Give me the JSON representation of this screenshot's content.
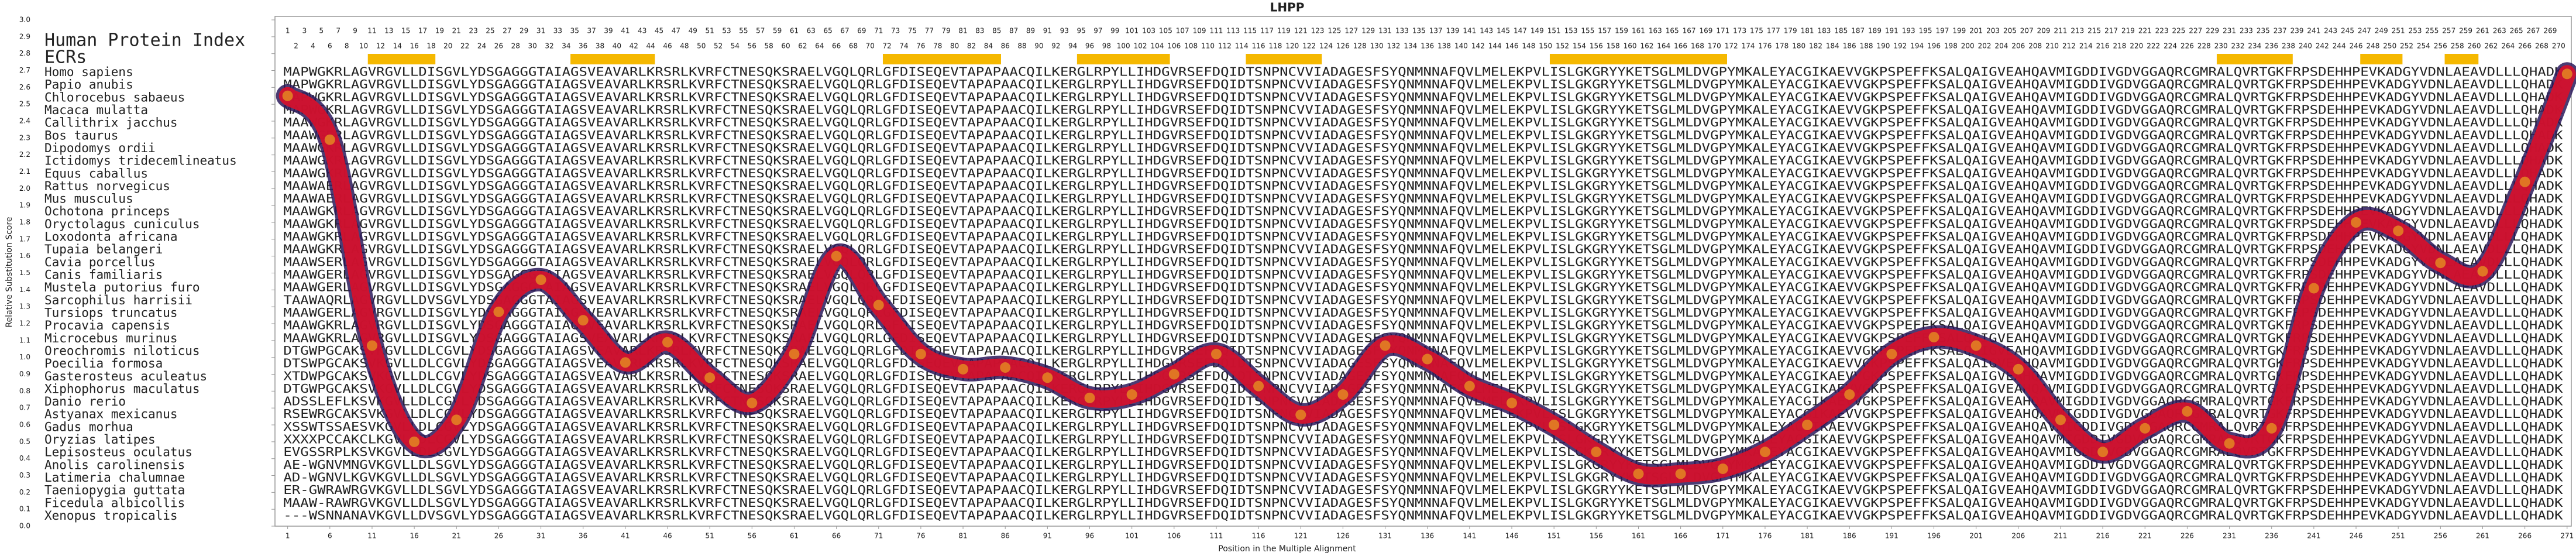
{
  "chart_data": {
    "type": "line",
    "title": "LHPP",
    "x_label": "Position in the Multiple Alignment",
    "y_label": "Relative Substitution Score",
    "index_header": "Human Protein Index",
    "ecr_header": "ECRs",
    "ecr_color": "#f5b800",
    "ecrs": [
      [
        11,
        18
      ],
      [
        35,
        44
      ],
      [
        72,
        85
      ],
      [
        95,
        105
      ],
      [
        115,
        123
      ],
      [
        151,
        171
      ],
      [
        230,
        238
      ],
      [
        247,
        251
      ],
      [
        257,
        260
      ]
    ],
    "human_index": [
      1,
      2,
      3,
      4,
      5,
      6,
      7,
      8,
      9,
      10,
      11,
      12,
      13,
      14,
      15,
      16,
      17,
      18,
      19,
      20,
      21,
      22,
      23,
      24,
      25,
      26,
      27,
      28,
      29,
      30,
      31,
      32,
      33,
      34,
      35,
      36,
      37,
      38,
      39,
      40,
      41,
      42,
      43,
      44,
      45,
      46,
      47,
      48,
      49,
      50,
      51,
      52,
      53,
      54,
      55,
      56,
      57,
      58,
      59,
      60,
      61,
      62,
      63,
      64,
      65,
      66,
      67,
      68,
      69,
      70,
      71,
      72,
      73,
      74,
      75,
      76,
      77,
      78,
      79,
      80,
      81,
      82,
      83,
      84,
      85,
      86,
      87,
      88,
      89,
      90,
      91,
      92,
      93,
      94,
      95,
      96,
      97,
      98,
      99,
      100,
      101,
      102,
      103,
      104,
      105,
      106,
      107,
      108,
      109,
      110,
      111,
      112,
      113,
      114,
      115,
      116,
      117,
      118,
      119,
      120,
      121,
      122,
      123,
      124,
      125,
      126,
      127,
      128,
      129,
      130,
      131,
      132,
      133,
      134,
      135,
      136,
      137,
      138,
      139,
      140,
      141,
      142,
      143,
      144,
      145,
      146,
      147,
      148,
      149,
      150,
      151,
      152,
      153,
      154,
      155,
      156,
      157,
      158,
      159,
      160,
      161,
      162,
      163,
      164,
      165,
      166,
      167,
      168,
      169,
      170,
      171,
      172,
      173,
      174,
      175,
      176,
      177,
      178,
      179,
      180,
      181,
      182,
      183,
      184,
      185,
      186,
      187,
      188,
      189,
      190,
      191,
      192,
      193,
      194,
      195,
      196,
      197,
      198,
      199,
      200,
      201,
      202,
      203,
      204,
      205,
      206,
      207,
      208,
      209,
      210,
      211,
      212,
      213,
      214,
      215,
      216,
      217,
      218,
      219,
      220,
      221,
      222,
      223,
      224,
      225,
      226,
      227,
      228,
      229,
      230,
      231,
      232,
      233,
      234,
      235,
      236,
      237,
      238,
      239,
      240,
      241,
      242,
      243,
      244,
      245,
      246,
      247,
      248,
      249,
      250,
      251,
      252,
      253,
      254,
      255,
      256,
      257,
      258,
      259,
      260,
      261,
      262,
      263,
      264,
      265,
      266,
      267,
      268,
      269,
      270
    ],
    "species": [
      "Homo sapiens",
      "Papio anubis",
      "Chlorocebus sabaeus",
      "Macaca mulatta",
      "Callithrix jacchus",
      "Bos taurus",
      "Dipodomys ordii",
      "Ictidomys tridecemlineatus",
      "Equus caballus",
      "Rattus norvegicus",
      "Mus musculus",
      "Ochotona princeps",
      "Oryctolagus cuniculus",
      "Loxodonta africana",
      "Tupaia belangeri",
      "Cavia porcellus",
      "Canis familiaris",
      "Mustela putorius furo",
      "Sarcophilus harrisii",
      "Tursiops truncatus",
      "Procavia capensis",
      "Microcebus murinus",
      "Oreochromis niloticus",
      "Poecilia formosa",
      "Gasterosteus aculeatus",
      "Xiphophorus maculatus",
      "Danio rerio",
      "Astyanax mexicanus",
      "Gadus morhua",
      "Oryzias latipes",
      "Lepisosteus oculatus",
      "Anolis carolinensis",
      "Latimeria chalumnae",
      "Taeniopygia guttata",
      "Ficedula albicollis",
      "Xenopus tropicalis"
    ],
    "sequences": [
      "MAPWGKRLAGVRGVLLDISGVLYDSGAGGGTAIAGSVEAVARLKRSRLKVRFCTNESQKSRAELVGQLQRLGFDISEQEVTAPAPAACQILKERGLRPYLLIHDGVRSEFDQIDTSNPNCVVIADAGESFSYQNMNNAFQVLMELEKPVLISLGKGRYYKETSGLMLDVGPYMKALEYACGIKAEVVGKPSPEFFKSALQAIGVEAHQAVMIGDDIVGDVGGAQRCGMRALQVRTGKFRPSDEHHPEVKADGYVDNLAEAVDLLLQHADK",
      "MAPWGKRLAGVRGVLLDISGVLYDSGAGGGTAIAGSVEAVARLKRSRLKVRFCTNESQKSRAELVGQLQRLGFDISEQEVTAPAPAACQILKERGLRPYLLIHDGVRSEFDQIDTSNPNCVVIADAGESFSYQNMNNAFQVLMELEKPVLISLGKGRYYKETSGLMLDVGPYMKALEYACGIKAEVVGKPSPEFFKSALQAIGVEAHQAVMIGDDIVGDVGGAQRCGMRALQVRTGKFRPSDEHHPEVKADGYVDNLAEAVDLLLQHADK",
      "MAPWGKRLAGVRGVLLDISGVLYDSGAGGGTAIAGSVEAVARLKRSRLKVRFCTNESQKSRAELVGQLQRLGFDISEQEVTAPAPAACQILKERGLRPYLLIHDGVRSEFDQIDTSNPNCVVIADAGESFSYQNMNNAFQVLMELEKPVLISLGKGRYYKETSGLMLDVGPYMKALEYACGIKAEVVGKPSPEFFKSALQAIGVEAHQAVMIGDDIVGDVGGAQRCGMRALQVRTGKFRPSDEHHPEVKADGYVDNLAEAVDLLLQHADK",
      "MAPWGKRLAGVRGVLLDISGVLYDSGAGGGTAIAGSVEAVARLKRSRLKVRFCTNESQKSRAELVGQLQRLGFDISEQEVTAPAPAACQILKERGLRPYLLIHDGVRSEFDQIDTSNPNCVVIADAGESFSYQNMNNAFQVLMELEKPVLISLGKGRYYKETSGLMLDVGPYMKALEYACGIKAEVVGKPSPEFFKSALQAIGVEAHQAVMIGDDIVGDVGGAQRCGMRALQVRTGKFRPSDEHHPEVKADGYVDNLAEAVDLLLQHADK",
      "MAAWGKRLAGVRGVLLDISGVLYDSGAGGGTAIAGSVEAVARLKRSRLKVRFCTNESQKSRAELVGQLQRLGFDISEQEVTAPAPAACQILKERGLRPYLLIHDGVRSEFDQIDTSNPNCVVIADAGESFSYQNMNNAFQVLMELEKPVLISLGKGRYYKETSGLMLDVGPYMKALEYACGIKAEVVGKPSPEFFKSALQAIGVEAHQAVMIGDDIVGDVGGAQRCGMRALQVRTGKFRPSDEHHPEVKADGYVDNLAEAVDLLLQHADK",
      "MAAWGERLAGVRGVLLDISGVLYDSGAGGGTAIAGSVEAVARLKRSRLKVRFCTNESQKSRAELVGQLQRLGFDISEQEVTAPAPAACQILKERGLRPYLLIHDGVRSEFDQIDTSNPNCVVIADAGESFSYQNMNNAFQVLMELEKPVLISLGKGRYYKETSGLMLDVGPYMKALEYACGIKAEVVGKPSPEFFKSALQAIGVEAHQAVMIGDDIVGDVGGAQRCGMRALQVRTGKFRPSDEHHPEVKADGYVDNLAEAVDLLLQHADK",
      "MAAWGKRLAGVRGVLLDISGVLYDSGAGGGTAIAGSVEAVARLKRSRLKVRFCTNESQKSRAELVGQLQRLGFDISEQEVTAPAPAACQILKERGLRPYLLIHDGVRSEFDQIDTSNPNCVVIADAGESFSYQNMNNAFQVLMELEKPVLISLGKGRYYKETSGLMLDVGPYMKALEYACGIKAEVVGKPSPEFFKSALQAIGVEAHQAVMIGDDIVGDVGGAQRCGMRALQVRTGKFRPSDEHHPEVKADGYVDNLAEAVDLLLQHADK",
      "MAAWGKRLAGVRGVLLDISGVLYDSGAGGGTAIAGSVEAVARLKRSRLKVRFCTNESQKSRAELVGQLQRLGFDISEQEVTAPAPAACQILKERGLRPYLLIHDGVRSEFDQIDTSNPNCVVIADAGESFSYQNMNNAFQVLMELEKPVLISLGKGRYYKETSGLMLDVGPYMKALEYACGIKAEVVGKPSPEFFKSALQAIGVEAHQAVMIGDDIVGDVGGAQRCGMRALQVRTGKFRPSDEHHPEVKADGYVDNLAEAVDLLLQHADK",
      "MAAWGKRLAGVRGVLLDISGVLYDSGAGGGTAIAGSVEAVARLKRSRLKVRFCTNESQKSRAELVGQLQRLGFDISEQEVTAPAPAACQILKERGLRPYLLIHDGVRSEFDQIDTSNPNCVVIADAGESFSYQNMNNAFQVLMELEKPVLISLGKGRYYKETSGLMLDVGPYMKALEYACGIKAEVVGKPSPEFFKSALQAIGVEAHQAVMIGDDIVGDVGGAQRCGMRALQVRTGKFRPSDEHHPEVKADGYVDNLAEAVDLLLQHADK",
      "MAAWAERLAGVRGVLLDISGVLYDSGAGGGTAIAGSVEAVARLKRSRLKVRFCTNESQKSRAELVGQLQRLGFDISEQEVTAPAPAACQILKERGLRPYLLIHDGVRSEFDQIDTSNPNCVVIADAGESFSYQNMNNAFQVLMELEKPVLISLGKGRYYKETSGLMLDVGPYMKALEYACGIKAEVVGKPSPEFFKSALQAIGVEAHQAVMIGDDIVGDVGGAQRCGMRALQVRTGKFRPSDEHHPEVKADGYVDNLAEAVDLLLQHADK",
      "MAAWAERLAGVRGVLLDISGVLYDSGAGGGTAIAGSVEAVARLKRSRLKVRFCTNESQKSRAELVGQLQRLGFDISEQEVTAPAPAACQILKERGLRPYLLIHDGVRSEFDQIDTSNPNCVVIADAGESFSYQNMNNAFQVLMELEKPVLISLGKGRYYKETSGLMLDVGPYMKALEYACGIKAEVVGKPSPEFFKSALQAIGVEAHQAVMIGDDIVGDVGGAQRCGMRALQVRTGKFRPSDEHHPEVKADGYVDNLAEAVDLLLQHADK",
      "MAAWGKRLAGVRGVLLDISGVLYDSGAGGGTAIAGSVEAVARLKRSRLKVRFCTNESQKSRAELVGQLQRLGFDISEQEVTAPAPAACQILKERGLRPYLLIHDGVRSEFDQIDTSNPNCVVIADAGESFSYQNMNNAFQVLMELEKPVLISLGKGRYYKETSGLMLDVGPYMKALEYACGIKAEVVGKPSPEFFKSALQAIGVEAHQAVMIGDDIVGDVGGAQRCGMRALQVRTGKFRPSDEHHPEVKADGYVDNLAEAVDLLLQHADK",
      "MAAWGKRLAGVRGVLLDISGVLYDSGAGGGTAIAGSVEAVARLKRSRLKVRFCTNESQKSRAELVGQLQRLGFDISEQEVTAPAPAACQILKERGLRPYLLIHDGVRSEFDQIDTSNPNCVVIADAGESFSYQNMNNAFQVLMELEKPVLISLGKGRYYKETSGLMLDVGPYMKALEYACGIKAEVVGKPSPEFFKSALQAIGVEAHQAVMIGDDIVGDVGGAQRCGMRALQVRTGKFRPSDEHHPEVKADGYVDNLAEAVDLLLQHADK",
      "MAAWGKRLAGVRGVLLDISGVLYDSGAGGGTAIAGSVEAVARLKRSRLKVRFCTNESQKSRAELVGQLQRLGFDISEQEVTAPAPAACQILKERGLRPYLLIHDGVRSEFDQIDTSNPNCVVIADAGESFSYQNMNNAFQVLMELEKPVLISLGKGRYYKETSGLMLDVGPYMKALEYACGIKAEVVGKPSPEFFKSALQAIGVEAHQAVMIGDDIVGDVGGAQRCGMRALQVRTGKFRPSDEHHPEVKADGYVDNLAEAVDLLLQHADK",
      "MAAWGKRLAGVRGVLLDISGVLYDSGAGGGTAIAGSVEAVARLKRSRLKVRFCTNESQKSRAELVGQLQRLGFDISEQEVTAPAPAACQILKERGLRPYLLIHDGVRSEFDQIDTSNPNCVVIADAGESFSYQNMNNAFQVLMELEKPVLISLGKGRYYKETSGLMLDVGPYMKALEYACGIKAEVVGKPSPEFFKSALQAIGVEAHQAVMIGDDIVGDVGGAQRCGMRALQVRTGKFRPSDEHHPEVKADGYVDNLAEAVDLLLQHADK",
      "MAAWSERLAGVRGVLLDISGVLYDSGAGGGTAIAGSVEAVARLKRSRLKVRFCTNESQKSRAELVGQLQRLGFDISEQEVTAPAPAACQILKERGLRPYLLIHDGVRSEFDQIDTSNPNCVVIADAGESFSYQNMNNAFQVLMELEKPVLISLGKGRYYKETSGLMLDVGPYMKALEYACGIKAEVVGKPSPEFFKSALQAIGVEAHQAVMIGDDIVGDVGGAQRCGMRALQVRTGKFRPSDEHHPEVKADGYVDNLAEAVDLLLQHADK",
      "MAAWGERLAGVRGVLLDISGVLYDSGAGGGTAIAGSVEAVARLKRSRLKVRFCTNESQKSRAELVGQLQRLGFDISEQEVTAPAPAACQILKERGLRPYLLIHDGVRSEFDQIDTSNPNCVVIADAGESFSYQNMNNAFQVLMELEKPVLISLGKGRYYKETSGLMLDVGPYMKALEYACGIKAEVVGKPSPEFFKSALQAIGVEAHQAVMIGDDIVGDVGGAQRCGMRALQVRTGKFRPSDEHHPEVKADGYVDNLAEAVDLLLQHADK",
      "MAAWGERLAGVRGVLLDISGVLYDSGAGGGTAIAGSVEAVARLKRSRLKVRFCTNESQKSRAELVGQLQRLGFDISEQEVTAPAPAACQILKERGLRPYLLIHDGVRSEFDQIDTSNPNCVVIADAGESFSYQNMNNAFQVLMELEKPVLISLGKGRYYKETSGLMLDVGPYMKALEYACGIKAEVVGKPSPEFFKSALQAIGVEAHQAVMIGDDIVGDVGGAQRCGMRALQVRTGKFRPSDEHHPEVKADGYVDNLAEAVDLLLQHADK",
      "TAAWAQRLAGVRGVLLDVSGVLYDSGAGGGTAIAGSVEAVARLKRSRLKVRFCTNESQKSRAELVGQLQRLGFDISEQEVTAPAPAACQILKERGLRPYLLIHDGVRSEFDQIDTSNPNCVVIADAGESFSYQNMNNAFQVLMELEKPVLISLGKGRYYKETSGLMLDVGPYMKALEYACGIKAEVVGKPSPEFFKSALQAIGVEAHQAVMIGDDIVGDVGGAQRCGMRALQVRTGKFRPSDEHHPEVKADGYVDNLAEAVDLLLQHADK",
      "MAAWGERLAGVRGVLLDISGVLYDSGAGGGTAIAGSVEAVARLKRSRLKVRFCTNESQKSRAELVGQLQRLGFDISEQEVTAPAPAACQILKERGLRPYLLIHDGVRSEFDQIDTSNPNCVVIADAGESFSYQNMNNAFQVLMELEKPVLISLGKGRYYKETSGLMLDVGPYMKALEYACGIKAEVVGKPSPEFFKSALQAIGVEAHQAVMIGDDIVGDVGGAQRCGMRALQVRTGKFRPSDEHHPEVKADGYVDNLAEAVDLLLQHADK",
      "MAAWGKRLAGVRGVLLDISGVLYDSGAGGGTAIAGSVEAVARLKRSRLKVRFCTNESQKSRAELVGQLQRLGFDISEQEVTAPAPAACQILKERGLRPYLLIHDGVRSEFDQIDTSNPNCVVIADAGESFSYQNMNNAFQVLMELEKPVLISLGKGRYYKETSGLMLDVGPYMKALEYACGIKAEVVGKPSPEFFKSALQAIGVEAHQAVMIGDDIVGDVGGAQRCGMRALQVRTGKFRPSDEHHPEVKADGYVDNLAEAVDLLLQHADK",
      "MAAWGKRLAGVRGVLLDISGVLYDSGAGGGTAIAGSVEAVARLKRSRLKVRFCTNESQKSRAELVGQLQRLGFDISEQEVTAPAPAACQILKERGLRPYLLIHDGVRSEFDQIDTSNPNCVVIADAGESFSYQNMNNAFQVLMELEKPVLISLGKGRYYKETSGLMLDVGPYMKALEYACGIKAEVVGKPSPEFFKSALQAIGVEAHQAVMIGDDIVGDVGGAQRCGMRALQVRTGKFRPSDEHHPEVKADGYVDNLAEAVDLLLQHADK",
      "DTGWPGCAKSVKGVLLDLCGVLYDSGAGGGTAIAGSVEAVARLKRSRLKVRFCTNESQKSRAELVGQLQRLGFDISEQEVTAPAPAACQILKERGLRPYLLIHDGVRSEFDQIDTSNPNCVVIADAGESFSYQNMNNAFQVLMELEKPVLISLGKGRYYKETSGLMLDVGPYMKALEYACGIKAEVVGKPSPEFFKSALQAIGVEAHQAVMIGDDIVGDVGGAQRCGMRALQVRTGKFRPSDEHHPEVKADGYVDNLAEAVDLLLQHADK",
      "DTSWPGCAKSVKGVLLDLCGVLYDSGAGGGTAIAGSVEAVARLKRSRLKVRFCTNESQKSRAELVGQLQRLGFDISEQEVTAPAPAACQILKERGLRPYLLIHDGVRSEFDQIDTSNPNCVVIADAGESFSYQNMNNAFQVLMELEKPVLISLGKGRYYKETSGLMLDVGPYMKALEYACGIKAEVVGKPSPEFFKSALQAIGVEAHQAVMIGDDIVGDVGGAQRCGMRALQVRTGKFRPSDEHHPEVKADGYVDNLAEAVDLLLQHADK",
      "XTDWPGCAKSVKGVLLDLCGVLYDSGAGGGTAIAGSVEAVARLKRSRLKVRFCTNESQKSRAELVGQLQRLGFDISEQEVTAPAPAACQILKERGLRPYLLIHDGVRSEFDQIDTSNPNCVVIADAGESFSYQNMNNAFQVLMELEKPVLISLGKGRYYKETSGLMLDVGPYMKALEYACGIKAEVVGKPSPEFFKSALQAIGVEAHQAVMIGDDIVGDVGGAQRCGMRALQVRTGKFRPSDEHHPEVKADGYVDNLAEAVDLLLQHADK",
      "DTGWPGCAKSVKGVLLDLCGVLYDSGAGGGTAIAGSVEAVARLKRSRLKVRFCTNESQKSRAELVGQLQRLGFDISEQEVTAPAPAACQILKERGLRPYLLIHDGVRSEFDQIDTSNPNCVVIADAGESFSYQNMNNAFQVLMELEKPVLISLGKGRYYKETSGLMLDVGPYMKALEYACGIKAEVVGKPSPEFFKSALQAIGVEAHQAVMIGDDIVGDVGGAQRCGMRALQVRTGKFRPSDEHHPEVKADGYVDNLAEAVDLLLQHADK",
      "ADSSLEFLKSVKGVLLDLCGVLYDSGAGGGTAIAGSVEAVARLKRSRLKVRFCTNESQKSRAELVGQLQRLGFDISEQEVTAPAPAACQILKERGLRPYLLIHDGVRSEFDQIDTSNPNCVVIADAGESFSYQNMNNAFQVLMELEKPVLISLGKGRYYKETSGLMLDVGPYMKALEYACGIKAEVVGKPSPEFFKSALQAIGVEAHQAVMIGDDIVGDVGGAQRCGMRALQVRTGKFRPSDEHHPEVKADGYVDNLAEAVDLLLQHADK",
      "RSEWRGCAKSVKGVLLDLCGVLYDSGAGGGTAIAGSVEAVARLKRSRLKVRFCTNESQKSRAELVGQLQRLGFDISEQEVTAPAPAACQILKERGLRPYLLIHDGVRSEFDQIDTSNPNCVVIADAGESFSYQNMNNAFQVLMELEKPVLISLGKGRYYKETSGLMLDVGPYMKALEYACGIKAEVVGKPSPEFFKSALQAIGVEAHQAVMIGDDIVGDVGGAQRCGMRALQVRTGKFRPSDEHHPEVKADGYVDNLAEAVDLLLQHADK",
      "XSSWTSSAESVKGVLLDLCGVLYDSGAGGGTAIAGSVEAVARLKRSRLKVRFCTNESQKSRAELVGQLQRLGFDISEQEVTAPAPAACQILKERGLRPYLLIHDGVRSEFDQIDTSNPNCVVIADAGESFSYQNMNNAFQVLMELEKPVLISLGKGRYYKETSGLMLDVGPYMKALEYACGIKAEVVGKPSPEFFKSALQAIGVEAHQAVMIGDDIVGDVGGAQRCGMRALQVRTGKFRPSDEHHPEVKADGYVDNLAEAVDLLLQHADK",
      "XXXXPCCAKCLKGVLLDLCGVLYDSGAGGGTAIAGSVEAVARLKRSRLKVRFCTNESQKSRAELVGQLQRLGFDISEQEVTAPAPAACQILKERGLRPYLLIHDGVRSEFDQIDTSNPNCVVIADAGESFSYQNMNNAFQVLMELEKPVLISLGKGRYYKETSGLMLDVGPYMKALEYACGIKAEVVGKPSPEFFKSALQAIGVEAHQAVMIGDDIVGDVGGAQRCGMRALQVRTGKFRPSDEHHPEVKADGYVDNLAEAVDLLLQHADK",
      "EVGSSRPLKSVKGVLLDLCGVLYDSGAGGGTAIAGSVEAVARLKRSRLKVRFCTNESQKSRAELVGQLQRLGFDISEQEVTAPAPAACQILKERGLRPYLLIHDGVRSEFDQIDTSNPNCVVIADAGESFSYQNMNNAFQVLMELEKPVLISLGKGRYYKETSGLMLDVGPYMKALEYACGIKAEVVGKPSPEFFKSALQAIGVEAHQAVMIGDDIVGDVGGAQRCGMRALQVRTGKFRPSDEHHPEVKADGYVDNLAEAVDLLLQHADK",
      "AE-WGNVMNGVKGVLLDLSGVLYDSGAGGGTAIAGSVEAVARLKRSRLKVRFCTNESQKSRAELVGQLQRLGFDISEQEVTAPAPAACQILKERGLRPYLLIHDGVRSEFDQIDTSNPNCVVIADAGESFSYQNMNNAFQVLMELEKPVLISLGKGRYYKETSGLMLDVGPYMKALEYACGIKAEVVGKPSPEFFKSALQAIGVEAHQAVMIGDDIVGDVGGAQRCGMRALQVRTGKFRPSDEHHPEVKADGYVDNLAEAVDLLLQHADK",
      "AD-WGNVLKGVKGVLLDLSGVLYDSGAGGGTAIAGSVEAVARLKRSRLKVRFCTNESQKSRAELVGQLQRLGFDISEQEVTAPAPAACQILKERGLRPYLLIHDGVRSEFDQIDTSNPNCVVIADAGESFSYQNMNNAFQVLMELEKPVLISLGKGRYYKETSGLMLDVGPYMKALEYACGIKAEVVGKPSPEFFKSALQAIGVEAHQAVMIGDDIVGDVGGAQRCGMRALQVRTGKFRPSDEHHPEVKADGYVDNLAEAVDLLLQHADK",
      "ER-GWRAWRGVKGVLLDLSGVLYDSGAGGGTAIAGSVEAVARLKRSRLKVRFCTNESQKSRAELVGQLQRLGFDISEQEVTAPAPAACQILKERGLRPYLLIHDGVRSEFDQIDTSNPNCVVIADAGESFSYQNMNNAFQVLMELEKPVLISLGKGRYYKETSGLMLDVGPYMKALEYACGIKAEVVGKPSPEFFKSALQAIGVEAHQAVMIGDDIVGDVGGAQRCGMRALQVRTGKFRPSDEHHPEVKADGYVDNLAEAVDLLLQHADK",
      "MAAW-RAWRGVKGVLLDLSGVLYDSGAGGGTAIAGSVEAVARLKRSRLKVRFCTNESQKSRAELVGQLQRLGFDISEQEVTAPAPAACQILKERGLRPYLLIHDGVRSEFDQIDTSNPNCVVIADAGESFSYQNMNNAFQVLMELEKPVLISLGKGRYYKETSGLMLDVGPYMKALEYACGIKAEVVGKPSPEFFKSALQAIGVEAHQAVMIGDDIVGDVGGAQRCGMRALQVRTGKFRPSDEHHPEVKADGYVDNLAEAVDLLLQHADK",
      "---WSNNANAVKGVLLDVSGVLYDSGAGGGTAIAGSVEAVARLKRSRLKVRFCTNESQKSRAELVGQLQRLGFDISEQEVTAPAPAACQILKERGLRPYLLIHDGVRSEFDQIDTSNPNCVVIADAGESFSYQNMNNAFQVLMELEKPVLISLGKGRYYKETSGLMLDVGPYMKALEYACGIKAEVVGKPSPEFFKSALQAIGVEAHQAVMIGDDIVGDVGGAQRCGMRALQVRTGKFRPSDEHHPEVKADGYVDNLAEAVDLLLQHADK"
    ],
    "sequence_color": "#2a5ea8",
    "x": [
      1,
      6,
      11,
      16,
      21,
      26,
      31,
      36,
      41,
      46,
      51,
      56,
      61,
      66,
      71,
      76,
      81,
      86,
      91,
      96,
      101,
      106,
      111,
      116,
      121,
      126,
      131,
      136,
      141,
      146,
      151,
      156,
      161,
      166,
      171,
      176,
      181,
      186,
      191,
      196,
      201,
      206,
      211,
      216,
      221,
      226,
      231,
      236,
      241,
      246,
      251,
      256,
      261,
      266,
      271
    ],
    "values": [
      2.55,
      2.29,
      1.07,
      0.5,
      0.63,
      1.27,
      1.46,
      1.22,
      0.97,
      1.09,
      0.88,
      0.73,
      1.02,
      1.6,
      1.31,
      1.02,
      0.93,
      0.94,
      0.88,
      0.76,
      0.78,
      0.9,
      1.02,
      0.83,
      0.66,
      0.78,
      1.07,
      0.99,
      0.83,
      0.73,
      0.6,
      0.44,
      0.31,
      0.31,
      0.34,
      0.44,
      0.6,
      0.78,
      1.02,
      1.12,
      1.07,
      0.93,
      0.63,
      0.44,
      0.58,
      0.68,
      0.49,
      0.58,
      1.41,
      1.8,
      1.75,
      1.56,
      1.51,
      2.04,
      2.68
    ],
    "color": "#d7102b",
    "xlim": [
      -0.5,
      271.5
    ],
    "ylim": [
      0,
      3
    ],
    "xticks": [
      1,
      6,
      11,
      16,
      21,
      26,
      31,
      36,
      41,
      46,
      51,
      56,
      61,
      66,
      71,
      76,
      81,
      86,
      91,
      96,
      101,
      106,
      111,
      116,
      121,
      126,
      131,
      136,
      141,
      146,
      151,
      156,
      161,
      166,
      171,
      176,
      181,
      186,
      191,
      196,
      201,
      206,
      211,
      216,
      221,
      226,
      231,
      236,
      241,
      246,
      251,
      256,
      261,
      266,
      271
    ],
    "yticks": [
      {
        "value": 0,
        "label": "0.0"
      },
      {
        "value": 0.1,
        "label": "0.1"
      },
      {
        "value": 0.2,
        "label": "0.2"
      },
      {
        "value": 0.3,
        "label": "0.3"
      },
      {
        "value": 0.4,
        "label": "0.4"
      },
      {
        "value": 0.5,
        "label": "0.5"
      },
      {
        "value": 0.6,
        "label": "0.6"
      },
      {
        "value": 0.7,
        "label": "0.7"
      },
      {
        "value": 0.8,
        "label": "0.8"
      },
      {
        "value": 0.9,
        "label": "0.9"
      },
      {
        "value": 1,
        "label": "1.0"
      },
      {
        "value": 1.1,
        "label": "1.1"
      },
      {
        "value": 1.2,
        "label": "1.2"
      },
      {
        "value": 1.3,
        "label": "1.3"
      },
      {
        "value": 1.4,
        "label": "1.4"
      },
      {
        "value": 1.5,
        "label": "1.5"
      },
      {
        "value": 1.6,
        "label": "1.6"
      },
      {
        "value": 1.7,
        "label": "1.7"
      },
      {
        "value": 1.8,
        "label": "1.8"
      },
      {
        "value": 1.9,
        "label": "1.9"
      },
      {
        "value": 2,
        "label": "2.0"
      },
      {
        "value": 2.1,
        "label": "2.1"
      },
      {
        "value": 2.2,
        "label": "2.2"
      },
      {
        "value": 2.3,
        "label": "2.3"
      },
      {
        "value": 2.4,
        "label": "2.4"
      },
      {
        "value": 2.5,
        "label": "2.5"
      },
      {
        "value": 2.6,
        "label": "2.6"
      },
      {
        "value": 2.7,
        "label": "2.7"
      },
      {
        "value": 2.8,
        "label": "2.8"
      },
      {
        "value": 2.9,
        "label": "2.9"
      },
      {
        "value": 3,
        "label": "3.0"
      }
    ]
  }
}
